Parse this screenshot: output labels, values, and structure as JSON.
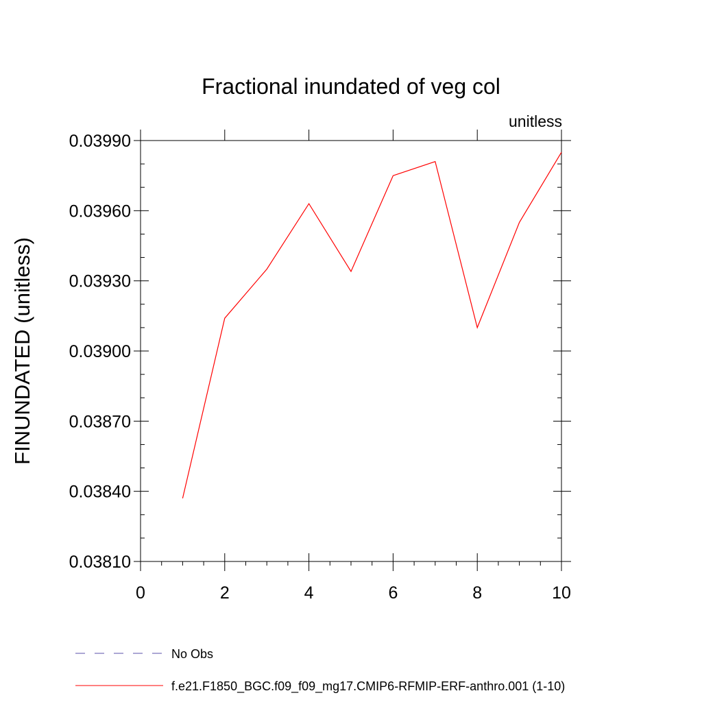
{
  "chart_data": {
    "type": "line",
    "title": "Fractional inundated of veg col",
    "units_label": "unitless",
    "xlabel": "",
    "ylabel": "FINUNDATED  (unitless)",
    "xlim": [
      0,
      10
    ],
    "ylim": [
      0.0381,
      0.0399
    ],
    "x_ticks": [
      "0",
      "2",
      "4",
      "6",
      "8",
      "10"
    ],
    "y_ticks": [
      "0.03810",
      "0.03840",
      "0.03870",
      "0.03900",
      "0.03930",
      "0.03960",
      "0.03990"
    ],
    "grid": false,
    "legend_position": "bottom",
    "series": [
      {
        "name": "No Obs",
        "color": "#5a4fa8",
        "style": "dashed",
        "x": [],
        "y": []
      },
      {
        "name": "f.e21.F1850_BGC.f09_f09_mg17.CMIP6-RFMIP-ERF-anthro.001 (1-10)",
        "color": "#ff0000",
        "style": "solid",
        "x": [
          1,
          2,
          3,
          4,
          5,
          6,
          7,
          8,
          9,
          10
        ],
        "y": [
          0.03837,
          0.03914,
          0.03935,
          0.03963,
          0.03934,
          0.03975,
          0.03981,
          0.0391,
          0.03955,
          0.03985
        ]
      }
    ]
  }
}
